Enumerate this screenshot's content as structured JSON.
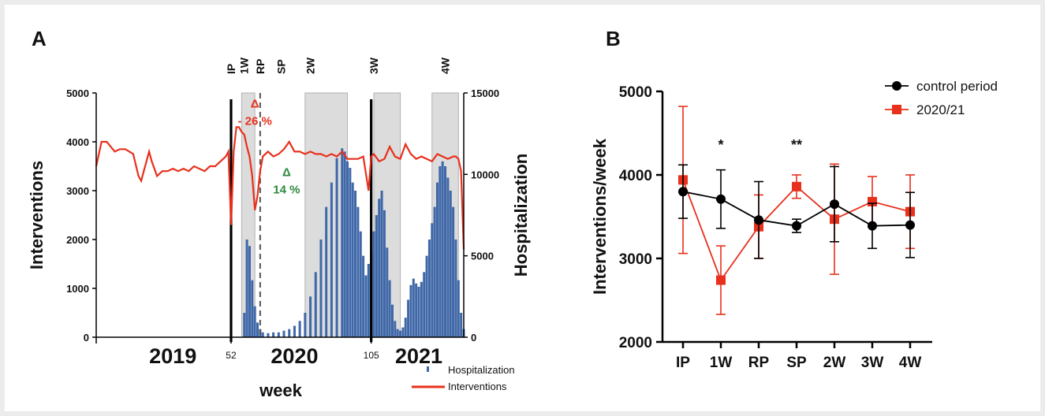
{
  "colors": {
    "red": "#e8301c",
    "blue": "#3f68a8",
    "green": "#2b8a3e",
    "black": "#000000",
    "shade": "#dcdcdc"
  },
  "chart_data": [
    {
      "type": "line",
      "panel": "A",
      "xlabel": "week",
      "ylabel": "Interventions",
      "y2label": "Hospitalization",
      "ylim": [
        0,
        5000
      ],
      "y2lim": [
        0,
        15000
      ],
      "yticks": [
        "5000",
        "4000",
        "3000",
        "2000",
        "1000",
        "0"
      ],
      "y2ticks": [
        "15000",
        "10000",
        "5000",
        "0"
      ],
      "xlim": [
        1,
        140
      ],
      "week_marks": [
        {
          "week": 52,
          "label": "52"
        },
        {
          "week": 105,
          "label": "105"
        }
      ],
      "years": [
        {
          "label": "2019",
          "week": 30
        },
        {
          "label": "2020",
          "week": 76
        },
        {
          "label": "2021",
          "week": 123
        }
      ],
      "phase_lines": [
        {
          "week": 52,
          "label": "IP",
          "style": "solid"
        },
        {
          "week": 57,
          "label": "1W",
          "style": "none"
        },
        {
          "week": 63,
          "label": "RP",
          "style": "dashed"
        },
        {
          "week": 71,
          "label": "SP",
          "style": "none"
        },
        {
          "week": 82,
          "label": "2W",
          "style": "none"
        },
        {
          "week": 105,
          "label": "",
          "style": "solid"
        },
        {
          "week": 106,
          "label": "3W",
          "style": "none"
        },
        {
          "week": 133,
          "label": "4W",
          "style": "none"
        }
      ],
      "shaded_periods": [
        [
          56,
          61
        ],
        [
          80,
          96
        ],
        [
          106,
          116
        ],
        [
          128,
          138
        ]
      ],
      "annotations": [
        {
          "text": "Δ",
          "text2": "- 26 %",
          "week": 61,
          "value": 4700,
          "color": "red"
        },
        {
          "text": "Δ",
          "text2": "14 %",
          "week": 73,
          "value": 3300,
          "color": "green"
        }
      ],
      "legend": {
        "position": "bottom-right",
        "entries": [
          "Hospitalization",
          "Interventions"
        ]
      },
      "series": [
        {
          "name": "Interventions",
          "axis": "left",
          "color": "red",
          "x": [
            1,
            3,
            5,
            8,
            10,
            12,
            15,
            17,
            18,
            19,
            21,
            22,
            24,
            26,
            28,
            30,
            32,
            34,
            36,
            38,
            40,
            42,
            44,
            46,
            48,
            50,
            51,
            52,
            53,
            54,
            55,
            56,
            57,
            58,
            59,
            60,
            61,
            62,
            63,
            64,
            66,
            68,
            70,
            72,
            74,
            76,
            78,
            80,
            82,
            84,
            86,
            88,
            90,
            92,
            94,
            96,
            98,
            100,
            102,
            104,
            105,
            106,
            108,
            110,
            112,
            114,
            116,
            118,
            120,
            122,
            124,
            126,
            128,
            130,
            132,
            134,
            136,
            137,
            138,
            139,
            140
          ],
          "y": [
            3500,
            4000,
            4000,
            3800,
            3850,
            3850,
            3750,
            3300,
            3200,
            3400,
            3800,
            3600,
            3300,
            3400,
            3400,
            3450,
            3400,
            3450,
            3400,
            3500,
            3450,
            3400,
            3500,
            3500,
            3600,
            3700,
            3800,
            2300,
            3800,
            4300,
            4300,
            4200,
            4150,
            3900,
            3700,
            3300,
            2600,
            2900,
            3400,
            3700,
            3800,
            3700,
            3750,
            3850,
            4000,
            3800,
            3800,
            3750,
            3800,
            3750,
            3750,
            3700,
            3750,
            3700,
            3800,
            3650,
            3650,
            3650,
            3700,
            3000,
            3700,
            3750,
            3600,
            3650,
            3900,
            3700,
            3650,
            3950,
            3750,
            3650,
            3700,
            3650,
            3600,
            3750,
            3700,
            3650,
            3700,
            3700,
            3650,
            3400,
            1800
          ]
        },
        {
          "name": "Hospitalization",
          "axis": "right",
          "type": "bar",
          "color": "blue",
          "x": [
            57,
            58,
            59,
            60,
            61,
            62,
            63,
            64,
            66,
            68,
            70,
            72,
            74,
            76,
            78,
            80,
            82,
            84,
            86,
            88,
            90,
            92,
            94,
            95,
            96,
            97,
            98,
            99,
            100,
            101,
            102,
            103,
            104,
            105,
            106,
            107,
            108,
            109,
            110,
            111,
            112,
            113,
            114,
            115,
            116,
            117,
            118,
            119,
            120,
            121,
            122,
            123,
            124,
            125,
            126,
            127,
            128,
            129,
            130,
            131,
            132,
            133,
            134,
            135,
            136,
            137,
            138,
            139,
            140
          ],
          "y": [
            1500,
            6000,
            5600,
            3500,
            1900,
            900,
            500,
            300,
            250,
            300,
            300,
            400,
            500,
            700,
            1000,
            1500,
            2500,
            4000,
            6000,
            8000,
            9500,
            11000,
            11600,
            11400,
            10800,
            10400,
            9500,
            9000,
            8000,
            6500,
            5000,
            3800,
            4500,
            5200,
            6500,
            7500,
            8500,
            9000,
            7800,
            5500,
            3500,
            2000,
            1000,
            500,
            400,
            600,
            1200,
            2300,
            3200,
            3600,
            3300,
            3100,
            3400,
            4000,
            5000,
            6000,
            7000,
            8000,
            9500,
            10500,
            10800,
            10500,
            9800,
            9000,
            8000,
            6000,
            3500,
            1500,
            500
          ]
        }
      ]
    },
    {
      "type": "line",
      "panel": "B",
      "xlabel": "",
      "ylabel": "Interventions/week",
      "ylim": [
        2000,
        5000
      ],
      "yticks": [
        "5000",
        "4000",
        "3000",
        "2000"
      ],
      "categories": [
        "IP",
        "1W",
        "RP",
        "SP",
        "2W",
        "3W",
        "4W"
      ],
      "significance": [
        {
          "category": "1W",
          "text": "*"
        },
        {
          "category": "SP",
          "text": "**"
        }
      ],
      "legend": {
        "position": "top-right"
      },
      "series": [
        {
          "name": "control period",
          "marker": "circle",
          "color": "black",
          "values": [
            3800,
            3710,
            3460,
            3390,
            3650,
            3390,
            3400
          ],
          "errors": [
            320,
            350,
            460,
            80,
            450,
            270,
            390
          ]
        },
        {
          "name": "2020/21",
          "marker": "square",
          "color": "red",
          "values": [
            3940,
            2740,
            3380,
            3860,
            3470,
            3680,
            3560
          ],
          "errors": [
            880,
            410,
            380,
            140,
            660,
            300,
            440
          ]
        }
      ]
    }
  ]
}
